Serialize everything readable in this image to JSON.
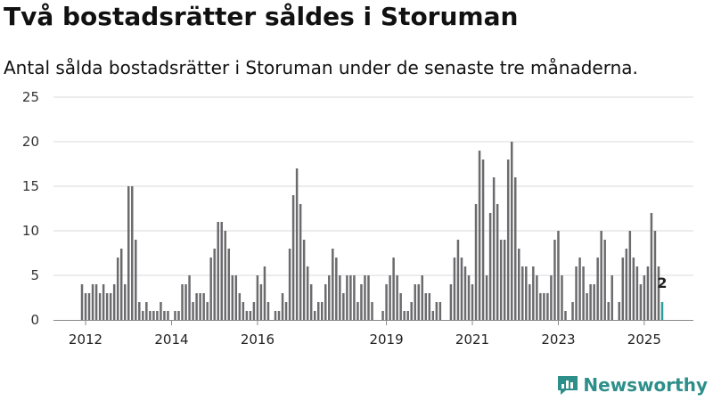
{
  "title": "Två bostadsrätter såldes i Storuman",
  "subtitle": "Antal sålda bostadsrätter i Storuman under de senaste tre månaderna.",
  "brand": {
    "name": "Newsworthy"
  },
  "colors": {
    "bar": "#6b6b6e",
    "highlight": "#2a9d96",
    "brand": "#2e8f8a"
  },
  "chart_data": {
    "type": "bar",
    "title": "Två bostadsrätter såldes i Storuman",
    "xlabel": "",
    "ylabel": "",
    "start": "2011-12",
    "end": "2025-07",
    "ylim": [
      0,
      25
    ],
    "yticks": [
      0,
      5,
      10,
      15,
      20,
      25
    ],
    "xticks": [
      {
        "label": "2012",
        "date": "2012-01"
      },
      {
        "label": "2014",
        "date": "2014-01"
      },
      {
        "label": "2016",
        "date": "2016-01"
      },
      {
        "label": "2019",
        "date": "2019-01"
      },
      {
        "label": "2021",
        "date": "2021-01"
      },
      {
        "label": "2023",
        "date": "2023-01"
      },
      {
        "label": "2025",
        "date": "2025-01"
      }
    ],
    "grid": true,
    "legend": "none",
    "highlight_last": true,
    "last_value_label": "2",
    "values": [
      4,
      3,
      3,
      4,
      4,
      3,
      4,
      3,
      3,
      4,
      7,
      8,
      4,
      15,
      15,
      9,
      2,
      1,
      2,
      1,
      1,
      1,
      2,
      1,
      1,
      0,
      1,
      1,
      4,
      4,
      5,
      2,
      3,
      3,
      3,
      2,
      7,
      8,
      11,
      11,
      10,
      8,
      5,
      5,
      3,
      2,
      1,
      1,
      2,
      5,
      4,
      6,
      2,
      0,
      1,
      1,
      3,
      2,
      8,
      14,
      17,
      13,
      9,
      6,
      4,
      1,
      2,
      2,
      4,
      5,
      8,
      7,
      5,
      3,
      5,
      5,
      5,
      2,
      4,
      5,
      5,
      2,
      0,
      0,
      1,
      4,
      5,
      7,
      5,
      3,
      1,
      1,
      2,
      4,
      4,
      5,
      3,
      3,
      1,
      2,
      2,
      0,
      0,
      4,
      7,
      9,
      7,
      6,
      5,
      4,
      13,
      19,
      18,
      5,
      12,
      16,
      13,
      9,
      9,
      18,
      20,
      16,
      8,
      6,
      6,
      4,
      6,
      5,
      3,
      3,
      3,
      5,
      9,
      10,
      5,
      1,
      0,
      2,
      6,
      7,
      6,
      3,
      4,
      4,
      7,
      10,
      9,
      2,
      5,
      0,
      2,
      7,
      8,
      10,
      7,
      6,
      4,
      5,
      6,
      12,
      10,
      6,
      2
    ]
  }
}
